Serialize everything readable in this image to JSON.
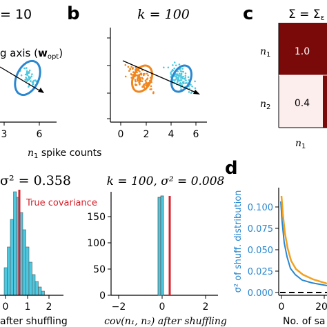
{
  "panel_labels": {
    "b": "b",
    "c": "c",
    "d": "d"
  },
  "top_left": {
    "title": "= 10",
    "annotation": "g axis (",
    "annotation_symbol": "w",
    "annotation_sub": "opt",
    "annotation_close": ")",
    "x_ticks": [
      "3",
      "6"
    ]
  },
  "top_middle": {
    "title": "k = 100",
    "x_ticks": [
      "0",
      "2",
      "4",
      "6"
    ],
    "xlabel_symbol": "n",
    "xlabel_sub": "1",
    "xlabel_rest": " spike counts"
  },
  "matrix": {
    "title": "Σ = Σ",
    "title_sub": "ε",
    "row_labels": [
      {
        "sym": "n",
        "sub": "1"
      },
      {
        "sym": "n",
        "sub": "2"
      }
    ],
    "col_label": {
      "sym": "n",
      "sub": "1"
    },
    "cells": [
      {
        "value": "1.0",
        "color": "#7a0a0a"
      },
      {
        "value": "0.4",
        "color": "#fdeeee"
      }
    ]
  },
  "bottom_left": {
    "title": "σ² = 0.358",
    "legend": "True covariance",
    "x_ticks": [
      "0",
      "1",
      "2"
    ],
    "xlabel": "after shuffling"
  },
  "bottom_middle": {
    "title": "k = 100, σ² = 0.008",
    "y_ticks": [
      "150",
      "100",
      "50",
      "0"
    ],
    "x_ticks": [
      "−2",
      "0",
      "2"
    ],
    "xlabel": "cov(n₁, n₂) after shuffling"
  },
  "bottom_right": {
    "ylabel": "σ² of shuff. distribution",
    "y_ticks": [
      "0.100",
      "0.075",
      "0.050",
      "0.025",
      "0.000"
    ],
    "x_ticks": [
      "0",
      "20"
    ],
    "xlabel": "No. of sa"
  },
  "colors": {
    "orange": "#f0861e",
    "blue": "#2a87d0",
    "cyan": "#4cc8e0",
    "red": "#d6202a",
    "gold": "#f2a11f",
    "ylabel_blue": "#2a87d0"
  }
}
